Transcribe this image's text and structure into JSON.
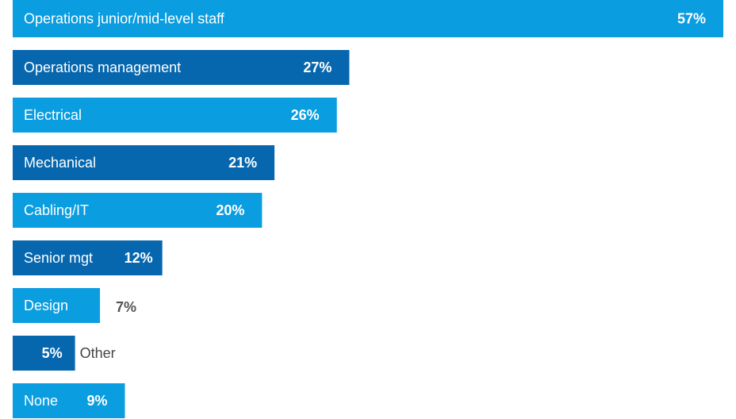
{
  "chart_data": {
    "type": "bar",
    "orientation": "horizontal",
    "categories": [
      "Operations junior/mid-level staff",
      "Operations management",
      "Electrical",
      "Mechanical",
      "Cabling/IT",
      "Senior mgt",
      "Design",
      "Other",
      "None"
    ],
    "values": [
      57,
      27,
      26,
      21,
      20,
      12,
      7,
      5,
      9
    ],
    "value_labels": [
      "57%",
      "27%",
      "26%",
      "21%",
      "20%",
      "12%",
      "7%",
      "5%",
      "9%"
    ],
    "colors": [
      "#0a9de0",
      "#0767ae",
      "#0a9de0",
      "#0767ae",
      "#0a9de0",
      "#0767ae",
      "#0a9de0",
      "#0767ae",
      "#0a9de0"
    ]
  }
}
